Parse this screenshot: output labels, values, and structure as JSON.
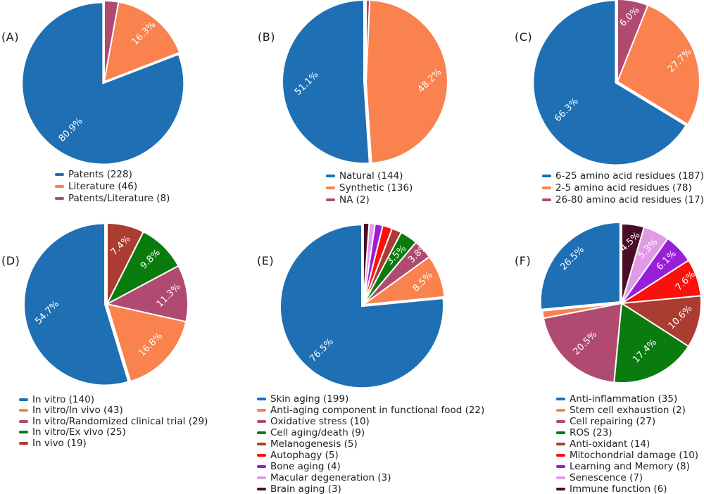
{
  "style": {
    "background": "#ffffff",
    "percent_label_color": "#ffffff",
    "legend_text_color": "#1f1f1f",
    "wedge_edge_color": "#ffffff"
  },
  "chart_data": [
    {
      "tag": "(A)",
      "type": "pie",
      "start_angle": 90,
      "direction": "counterclockwise",
      "legend_position": "below",
      "slices": [
        {
          "label": "Patents (228)",
          "value": 228,
          "pct_label": "80.9%",
          "color": "#1f6fb4",
          "label_r": 0.7
        },
        {
          "label": "Literature (46)",
          "value": 46,
          "pct_label": "16.3%",
          "color": "#f9824f",
          "label_r": 0.77
        },
        {
          "label": "Patents/Literature (8)",
          "value": 8,
          "pct_label": null,
          "color": "#b04a71"
        }
      ]
    },
    {
      "tag": "(B)",
      "type": "pie",
      "start_angle": 90,
      "direction": "counterclockwise",
      "legend_position": "below",
      "slices": [
        {
          "label": "Natural (144)",
          "value": 144,
          "pct_label": "51.1%",
          "color": "#1f6fb4",
          "label_r": 0.7
        },
        {
          "label": "Synthetic (136)",
          "value": 136,
          "pct_label": "48.2%",
          "color": "#f9824f",
          "label_r": 0.78
        },
        {
          "label": "NA (2)",
          "value": 2,
          "pct_label": null,
          "color": "#b04a71"
        }
      ]
    },
    {
      "tag": "(C)",
      "type": "pie",
      "start_angle": 90,
      "direction": "counterclockwise",
      "legend_position": "below",
      "slices": [
        {
          "label": "6-25 amino acid residues (187)",
          "value": 187,
          "pct_label": "66.3%",
          "color": "#1f6fb4",
          "label_r": 0.68
        },
        {
          "label": "2-5 amino acid residues (78)",
          "value": 78,
          "pct_label": "27.7%",
          "color": "#f9824f",
          "label_r": 0.8
        },
        {
          "label": "26-80 amino acid residues (17)",
          "value": 17,
          "pct_label": "6.0%",
          "color": "#b04a71",
          "label_r": 0.8
        }
      ]
    },
    {
      "tag": "(D)",
      "type": "pie",
      "start_angle": 90,
      "direction": "counterclockwise",
      "legend_position": "below",
      "slices": [
        {
          "label": "In vitro (140)",
          "value": 140,
          "pct_label": "54.7%",
          "color": "#1f6fb4",
          "label_r": 0.72
        },
        {
          "label": "In vitro/In vivo (43)",
          "value": 43,
          "pct_label": "16.8%",
          "color": "#f9824f",
          "label_r": 0.74
        },
        {
          "label": "In vitro/Randomized clinical trial (29)",
          "value": 29,
          "pct_label": "11.3%",
          "color": "#b04a71",
          "label_r": 0.77
        },
        {
          "label": "In vitro/Ex vivo (25)",
          "value": 25,
          "pct_label": "9.8%",
          "color": "#0a7b0f",
          "label_r": 0.77
        },
        {
          "label": "In vivo (19)",
          "value": 19,
          "pct_label": "7.4%",
          "color": "#aa3c32",
          "label_r": 0.74
        }
      ]
    },
    {
      "tag": "(E)",
      "type": "pie",
      "start_angle": 90,
      "direction": "counterclockwise",
      "legend_position": "below",
      "slices": [
        {
          "label": "Skin aging (199)",
          "value": 199,
          "pct_label": "76.5%",
          "color": "#1f6fb4",
          "label_r": 0.73
        },
        {
          "label": "Anti-aging component in functional food (22)",
          "value": 22,
          "pct_label": "8.5%",
          "color": "#f9824f",
          "label_r": 0.78
        },
        {
          "label": "Oxidative stress (10)",
          "value": 10,
          "pct_label": "3.8%",
          "color": "#b04a71",
          "label_r": 0.92
        },
        {
          "label": "Cell aging/death (9)",
          "value": 9,
          "pct_label": "3.5%",
          "color": "#0a7b0f",
          "label_r": 0.73
        },
        {
          "label": "Melanogenesis (5)",
          "value": 5,
          "pct_label": null,
          "color": "#aa3c32"
        },
        {
          "label": "Autophagy (5)",
          "value": 5,
          "pct_label": null,
          "color": "#fb100c"
        },
        {
          "label": "Bone aging (4)",
          "value": 4,
          "pct_label": null,
          "color": "#991ed7"
        },
        {
          "label": "Macular degeneration (3)",
          "value": 3,
          "pct_label": null,
          "color": "#e19be6"
        },
        {
          "label": "Brain aging (3)",
          "value": 3,
          "pct_label": null,
          "color": "#4b0c28"
        }
      ]
    },
    {
      "tag": "(F)",
      "type": "pie",
      "start_angle": 90,
      "direction": "counterclockwise",
      "legend_position": "below",
      "slices": [
        {
          "label": "Anti-inflammation (35)",
          "value": 35,
          "pct_label": "26.5%",
          "color": "#1f6fb4",
          "label_r": 0.81
        },
        {
          "label": "Stem cell exhaustion (2)",
          "value": 2,
          "pct_label": null,
          "color": "#f9824f"
        },
        {
          "label": "Cell repairing (27)",
          "value": 27,
          "pct_label": "20.5%",
          "color": "#b04a71",
          "label_r": 0.68
        },
        {
          "label": "ROS (23)",
          "value": 23,
          "pct_label": "17.4%",
          "color": "#0a7b0f",
          "label_r": 0.67
        },
        {
          "label": "Anti-oxidant (14)",
          "value": 14,
          "pct_label": "10.6%",
          "color": "#aa3c32",
          "label_r": 0.76
        },
        {
          "label": "Mitochondrial damage (10)",
          "value": 10,
          "pct_label": "7.6%",
          "color": "#fb100c",
          "label_r": 0.85
        },
        {
          "label": "Learning and Memory (8)",
          "value": 8,
          "pct_label": "6.1%",
          "color": "#991ed7",
          "label_r": 0.78
        },
        {
          "label": "Senescence (7)",
          "value": 7,
          "pct_label": "5.3%",
          "color": "#e19be6",
          "label_r": 0.76
        },
        {
          "label": "Immune function (6)",
          "value": 6,
          "pct_label": "4.5%",
          "color": "#4b0c28",
          "label_r": 0.78
        }
      ]
    }
  ]
}
